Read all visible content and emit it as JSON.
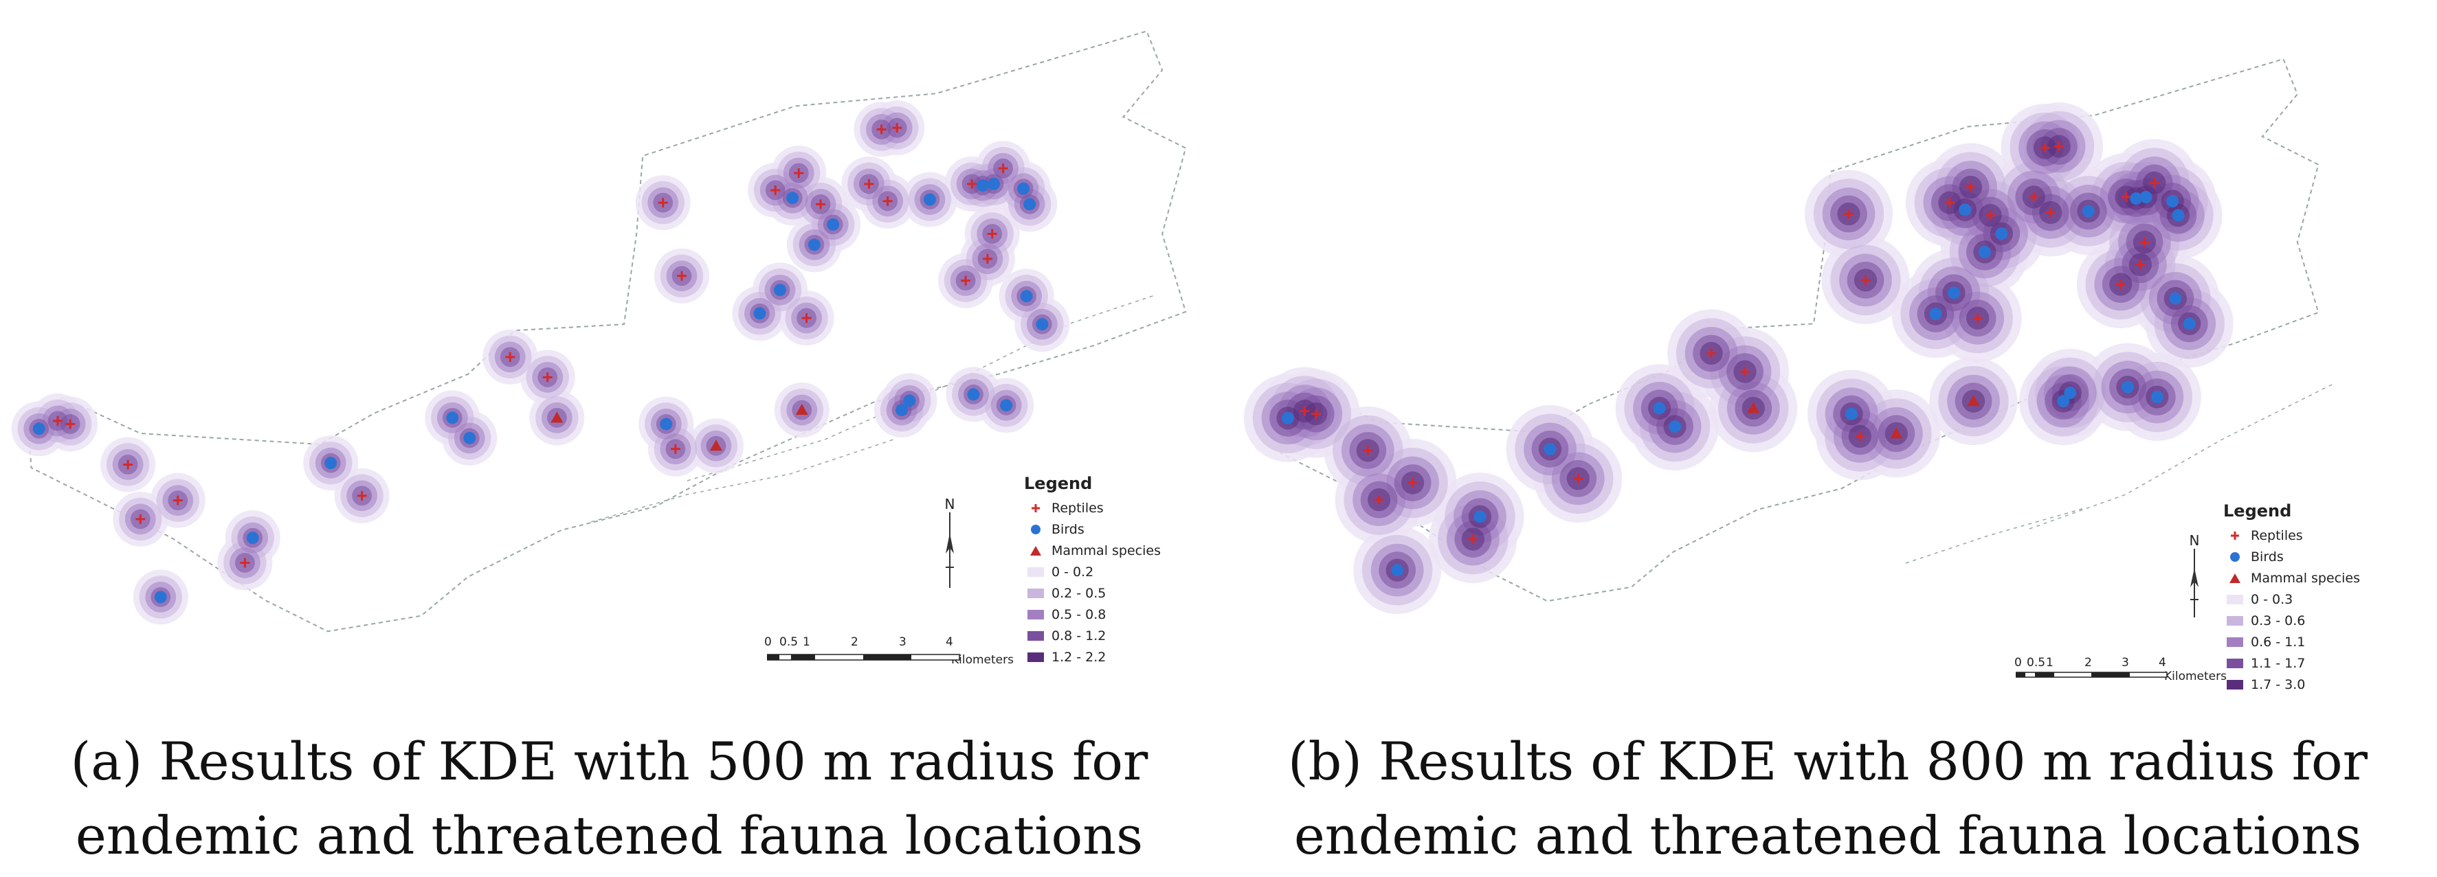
{
  "colors": {
    "reptile": "#d42a2a",
    "bird": "#2a73d4",
    "mammal": "#c02a2a",
    "density": [
      "#ece4f4",
      "#c9b5de",
      "#a37fc2",
      "#7a509e",
      "#5a2d7c"
    ],
    "boundary": "#9aa6a6"
  },
  "panels": [
    {
      "id": "a",
      "caption": [
        "(a) Results of KDE with 500 m radius for",
        "endemic and threatened fauna locations"
      ],
      "legend": {
        "title": "Legend",
        "symbols": [
          {
            "label": "Reptiles",
            "icon": "reptile-cross-icon"
          },
          {
            "label": "Birds",
            "icon": "bird-dot-icon"
          },
          {
            "label": "Mammal species",
            "icon": "mammal-triangle-icon"
          }
        ],
        "classes": [
          "0 - 0.2",
          "0.2 - 0.5",
          "0.5 - 0.8",
          "0.8 - 1.2",
          "1.2 - 2.2"
        ]
      },
      "north_label": "N",
      "scale": {
        "ticks": [
          "0",
          "0.5",
          "1",
          "2",
          "3",
          "4"
        ],
        "unit": "Kilometers"
      }
    },
    {
      "id": "b",
      "caption": [
        "(b) Results of KDE with 800 m radius for",
        "endemic and threatened fauna locations"
      ],
      "legend": {
        "title": "Legend",
        "symbols": [
          {
            "label": "Reptiles",
            "icon": "reptile-cross-icon"
          },
          {
            "label": "Birds",
            "icon": "bird-dot-icon"
          },
          {
            "label": "Mammal species",
            "icon": "mammal-triangle-icon"
          }
        ],
        "classes": [
          "0 - 0.3",
          "0.3 - 0.6",
          "0.6 - 1.1",
          "1.1 - 1.7",
          "1.7 - 3.0"
        ]
      },
      "north_label": "N",
      "scale": {
        "ticks": [
          "0",
          "0.5",
          "1",
          "2",
          "3",
          "4"
        ],
        "unit": "Kilometers"
      }
    }
  ]
}
